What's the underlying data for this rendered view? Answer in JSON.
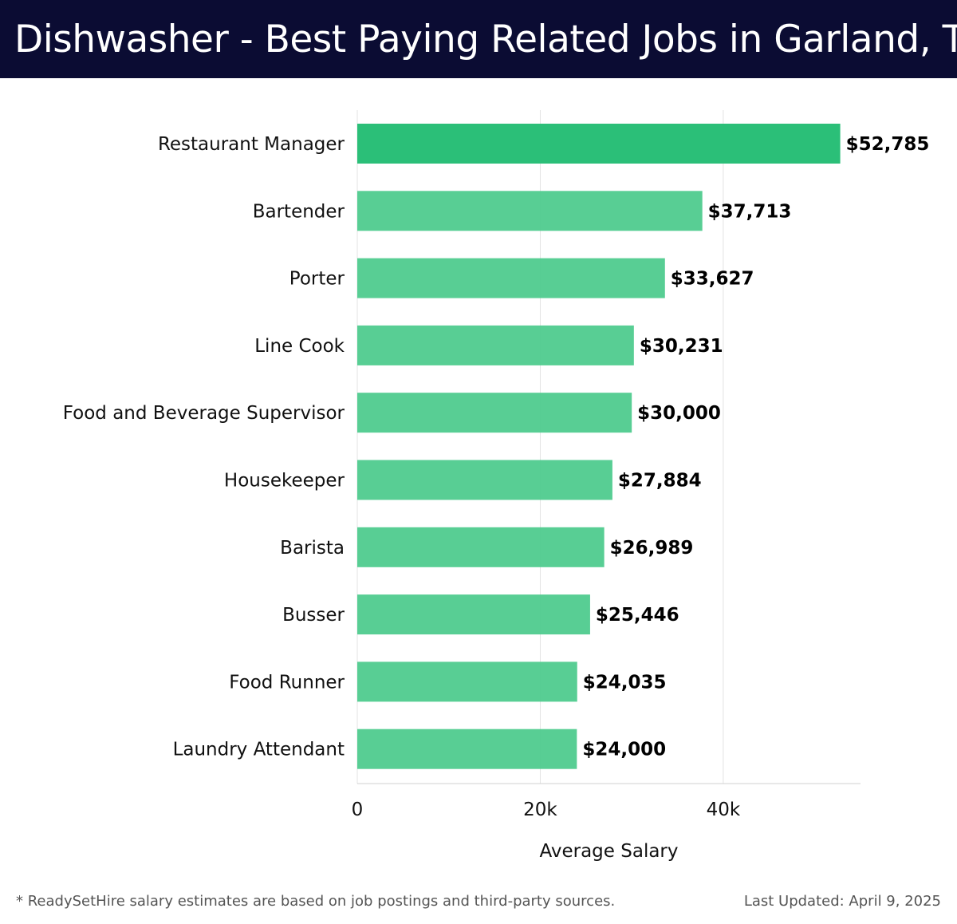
{
  "header": {
    "title": "Dishwasher - Best Paying Related Jobs in Garland, TX"
  },
  "chart_data": {
    "type": "bar",
    "orientation": "horizontal",
    "title": "Dishwasher - Best Paying Related Jobs in Garland, TX",
    "xlabel": "Average Salary",
    "ylabel": "",
    "xlim": [
      0,
      55000
    ],
    "x_ticks": [
      0,
      20000,
      40000
    ],
    "x_tick_labels": [
      "0",
      "20k",
      "40k"
    ],
    "grid": true,
    "categories": [
      "Restaurant Manager",
      "Bartender",
      "Porter",
      "Line Cook",
      "Food and Beverage Supervisor",
      "Housekeeper",
      "Barista",
      "Busser",
      "Food Runner",
      "Laundry Attendant"
    ],
    "values": [
      52785,
      37713,
      33627,
      30231,
      30000,
      27884,
      26989,
      25446,
      24035,
      24000
    ],
    "value_labels": [
      "$52,785",
      "$37,713",
      "$33,627",
      "$30,231",
      "$30,000",
      "$27,884",
      "$26,989",
      "$25,446",
      "$24,035",
      "$24,000"
    ],
    "colors": {
      "highlight": "#2bbf78",
      "bar": "#4fcb8e",
      "gridline": "#e3e3e3",
      "axis": "#d0d0d0",
      "label_text": "#111111",
      "value_text": "#000000"
    }
  },
  "footer": {
    "note": "* ReadySetHire salary estimates are based on job postings and third-party sources.",
    "updated": "Last Updated: April 9, 2025"
  }
}
